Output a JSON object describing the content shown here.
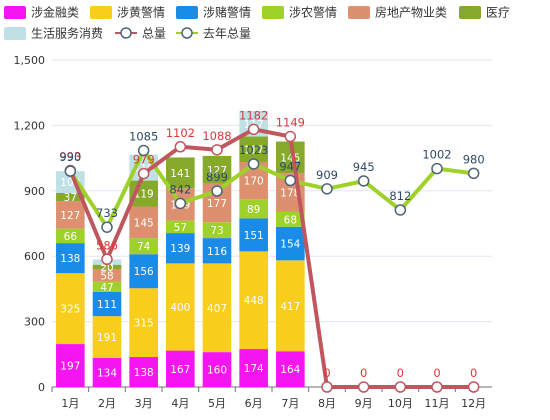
{
  "chart_data": {
    "type": "bar",
    "ylabel": "",
    "ylim": [
      0,
      1500
    ],
    "y_ticks": [
      "0",
      "300",
      "600",
      "900",
      "1,200",
      "1,500"
    ],
    "categories": [
      "1月",
      "2月",
      "3月",
      "4月",
      "5月",
      "6月",
      "7月",
      "8月",
      "9月",
      "10月",
      "11月",
      "12月"
    ],
    "series": [
      {
        "name": "涉金融类",
        "kind": "bar",
        "color": "#f515f0",
        "values": [
          197,
          134,
          138,
          167,
          160,
          174,
          164,
          null,
          null,
          null,
          null,
          null
        ]
      },
      {
        "name": "涉黄警情",
        "kind": "bar",
        "color": "#f9cd1c",
        "values": [
          325,
          191,
          315,
          400,
          407,
          448,
          417,
          null,
          null,
          null,
          null,
          null
        ]
      },
      {
        "name": "涉赌警情",
        "kind": "bar",
        "color": "#1a8ce8",
        "values": [
          138,
          111,
          156,
          139,
          116,
          151,
          154,
          null,
          null,
          null,
          null,
          null
        ]
      },
      {
        "name": "涉农警情",
        "kind": "bar",
        "color": "#9ed129",
        "values": [
          66,
          47,
          74,
          57,
          73,
          89,
          68,
          null,
          null,
          null,
          null,
          null
        ]
      },
      {
        "name": "房地产物业类",
        "kind": "bar",
        "color": "#dc9070",
        "values": [
          127,
          58,
          145,
          149,
          177,
          170,
          178,
          null,
          null,
          null,
          null,
          null
        ]
      },
      {
        "name": "医疗",
        "kind": "bar",
        "color": "#86a82b",
        "values": [
          37,
          20,
          119,
          141,
          127,
          117,
          145,
          null,
          null,
          null,
          null,
          null
        ]
      },
      {
        "name": "生活服务消费",
        "kind": "bar",
        "color": "#bfe1e5",
        "values": [
          100,
          24,
          119,
          null,
          null,
          117,
          null,
          null,
          null,
          null,
          null,
          null
        ]
      },
      {
        "name": "总量",
        "kind": "line",
        "color": "#c0575f",
        "label_color": "#d93a3a",
        "values": [
          993,
          586,
          979,
          1102,
          1088,
          1182,
          1149,
          0,
          0,
          0,
          0,
          0
        ]
      },
      {
        "name": "去年总量",
        "kind": "line",
        "color": "#9ed129",
        "label_color": "#2d4a66",
        "values": [
          990,
          733,
          1085,
          842,
          899,
          1023,
          947,
          909,
          945,
          812,
          1002,
          980
        ]
      }
    ],
    "legend_position": "top-left",
    "grid": true
  }
}
